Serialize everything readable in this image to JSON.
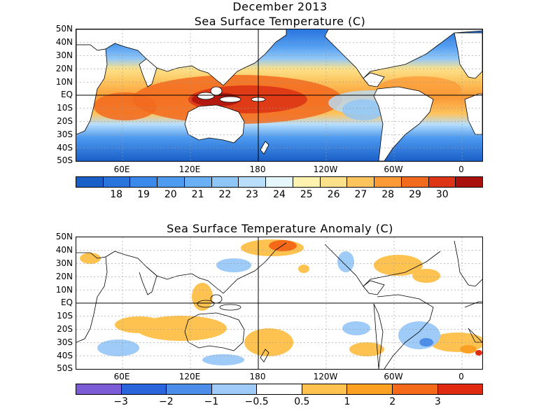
{
  "header": {
    "line1": "December 2013",
    "line2": "Sea Surface Temperature (C)"
  },
  "anomaly_title": "Sea Surface Temperature Anomaly (C)",
  "lat_labels": [
    "50N",
    "40N",
    "30N",
    "20N",
    "10N",
    "EQ",
    "10S",
    "20S",
    "30S",
    "40S",
    "50S"
  ],
  "lon_labels": [
    "60E",
    "120E",
    "180",
    "120W",
    "60W",
    "0"
  ],
  "sst_colorbar": {
    "colors": [
      "#1a5fc8",
      "#2a75dd",
      "#3b89ea",
      "#4f9bf0",
      "#69b0f5",
      "#8fc6f8",
      "#b8defb",
      "#e6f7fc",
      "#fdf2b0",
      "#fde18a",
      "#fdc35c",
      "#fb9a37",
      "#f26a1e",
      "#de3516",
      "#a8110c"
    ],
    "labels": [
      "18",
      "19",
      "20",
      "21",
      "22",
      "23",
      "24",
      "25",
      "26",
      "27",
      "28",
      "29",
      "30"
    ]
  },
  "anom_colorbar": {
    "colors": [
      "#7b5bd6",
      "#2a65dc",
      "#4b8de8",
      "#9ecbf7",
      "#ffffff",
      "#fdc24f",
      "#fba023",
      "#f56a18",
      "#e02a12"
    ],
    "labels": [
      "−3",
      "−2",
      "−1",
      "−0.5",
      "0.5",
      "1",
      "2",
      "3"
    ]
  }
}
